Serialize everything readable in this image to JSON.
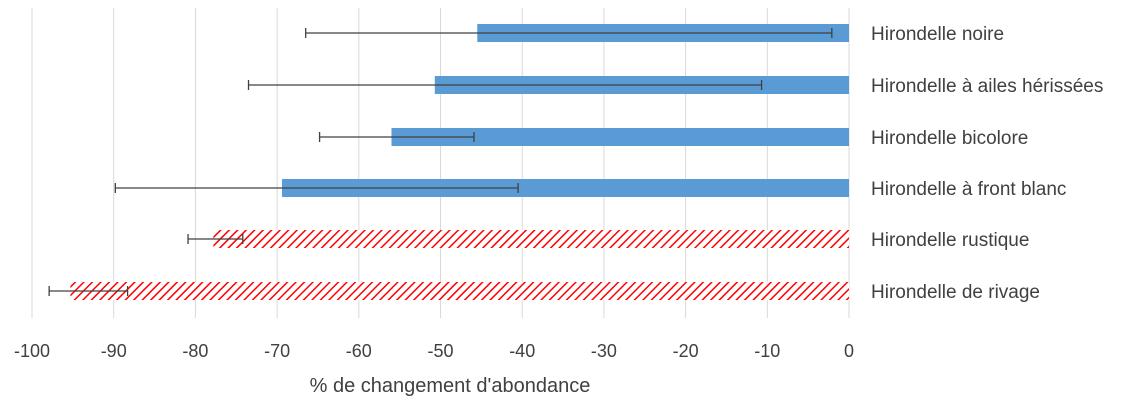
{
  "chart_data": {
    "type": "bar",
    "orientation": "horizontal",
    "categories": [
      "Hirondelle noire",
      "Hirondelle à ailes hérissées",
      "Hirondelle bicolore",
      "Hirondelle à front blanc",
      "Hirondelle rustique",
      "Hirondelle de rivage"
    ],
    "values": [
      -45.5,
      -50.7,
      -56,
      -69.4,
      -77.8,
      -95.3
    ],
    "error_low": [
      -66.5,
      -73.5,
      -64.8,
      -89.8,
      -80.9,
      -97.9
    ],
    "error_high": [
      -2.1,
      -10.7,
      -45.9,
      -40.5,
      -74.2,
      -88.3
    ],
    "bar_styles": [
      "solid",
      "solid",
      "solid",
      "solid",
      "hatched",
      "hatched"
    ],
    "xlabel": "% de changement d'abondance",
    "xlim": [
      -100,
      0
    ],
    "xticks": [
      -100,
      -90,
      -80,
      -70,
      -60,
      -50,
      -40,
      -30,
      -20,
      -10,
      0
    ],
    "grid": "vertical",
    "colors": {
      "solid_fill": "#5b9bd5",
      "hatch_stroke": "#ff0000",
      "grid": "#d9d9d9",
      "error_bar": "#404040",
      "text": "#404040"
    }
  }
}
